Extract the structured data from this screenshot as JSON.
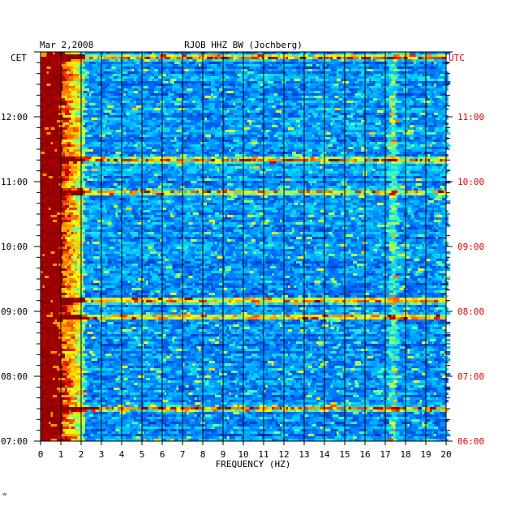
{
  "chart_data": {
    "type": "heatmap",
    "date": "Mar 2,2008",
    "title": "RJOB HHZ BW (Jochberg)",
    "xlabel": "FREQUENCY (HZ)",
    "x_ticks": [
      "0",
      "1",
      "2",
      "3",
      "4",
      "5",
      "6",
      "7",
      "8",
      "9",
      "10",
      "11",
      "12",
      "13",
      "14",
      "15",
      "16",
      "17",
      "18",
      "19",
      "20"
    ],
    "xlim": [
      0,
      20
    ],
    "left_axis_label": "CET",
    "right_axis_label": "UTC",
    "left_ticks": [
      "12:00",
      "11:00",
      "10:00",
      "09:00",
      "08:00",
      "07:00"
    ],
    "right_ticks": [
      "11:00",
      "10:00",
      "09:00",
      "08:00",
      "07:00",
      "06:00"
    ],
    "time_range_cet": [
      "07:00",
      "13:00"
    ],
    "colors": {
      "low": "#00208c",
      "mid": "#00c8ff",
      "high": "#ffff00",
      "max": "#8c0000"
    },
    "grid": true,
    "strong_bands_cet": [
      "07:30",
      "08:55",
      "09:10",
      "10:50",
      "11:20",
      "12:55"
    ],
    "persistent_peak_hz": 17.4
  },
  "footer_mark": "ʷ"
}
